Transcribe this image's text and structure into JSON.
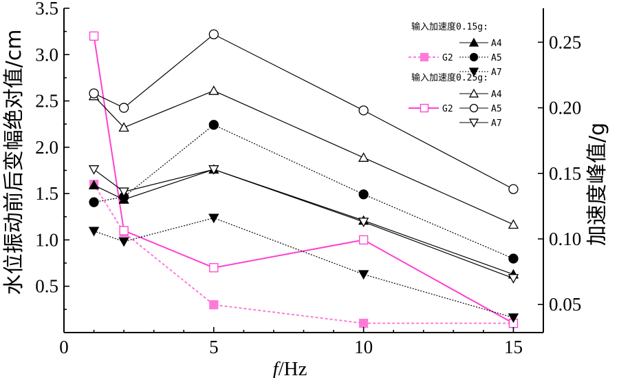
{
  "chart_data": {
    "type": "line",
    "xlabel_italic": "f",
    "xlabel_rest": "/Hz",
    "ylabel": "水位振动前后变幅绝对值/cm",
    "ylabel_right": "加速度峰值/g",
    "x_ticks": [
      "0",
      "5",
      "10",
      "15"
    ],
    "x_tick_values": [
      0,
      5,
      10,
      15
    ],
    "y_ticks": [
      "0.5",
      "1.0",
      "1.5",
      "2.0",
      "2.5",
      "3.0",
      "3.5"
    ],
    "y_tick_values": [
      0.5,
      1.0,
      1.5,
      2.0,
      2.5,
      3.0,
      3.5
    ],
    "y2_ticks": [
      "0.05",
      "0.10",
      "0.15",
      "0.20",
      "0.25"
    ],
    "y2_tick_values": [
      0.05,
      0.1,
      0.15,
      0.2,
      0.25
    ],
    "xlim": [
      0,
      16
    ],
    "ylim": [
      0,
      3.5
    ],
    "y2lim": [
      0.0286,
      0.2759
    ],
    "legend_groups": [
      {
        "title": "输入加速度0.15g:",
        "g2_label": "G2",
        "labels": [
          "A4",
          "A5",
          "A7"
        ]
      },
      {
        "title": "输入加速度0.25g:",
        "g2_label": "G2",
        "labels": [
          "A4",
          "A5",
          "A7"
        ]
      }
    ],
    "series": [
      {
        "name": "G2",
        "axis": "left",
        "group": 0,
        "marker": "square",
        "filled": true,
        "color": "#ff7ad8",
        "dash": "4,3",
        "width": 2,
        "x": [
          1,
          2,
          5,
          10,
          15
        ],
        "y": [
          1.6,
          1.08,
          0.3,
          0.1,
          0.1
        ]
      },
      {
        "name": "G2",
        "axis": "left",
        "group": 1,
        "marker": "square",
        "filled": false,
        "color": "#ff3fd0",
        "dash": "",
        "width": 2,
        "x": [
          1,
          2,
          5,
          10,
          15
        ],
        "y": [
          3.2,
          1.1,
          0.7,
          1.0,
          0.1
        ]
      },
      {
        "name": "A4",
        "axis": "right",
        "group": 0,
        "marker": "triangle-up",
        "filled": true,
        "color": "#000",
        "dash": "",
        "width": 1.2,
        "x": [
          1,
          2,
          5,
          10,
          15
        ],
        "y": [
          0.141,
          0.13,
          0.153,
          0.114,
          0.073
        ]
      },
      {
        "name": "A5",
        "axis": "right",
        "group": 0,
        "marker": "circle",
        "filled": true,
        "color": "#000",
        "dash": "2,2",
        "width": 1.2,
        "x": [
          1,
          2,
          5,
          10,
          15
        ],
        "y": [
          0.128,
          0.132,
          0.187,
          0.134,
          0.085
        ]
      },
      {
        "name": "A7",
        "axis": "right",
        "group": 0,
        "marker": "triangle-down",
        "filled": true,
        "color": "#000",
        "dash": "2,2",
        "width": 1.2,
        "x": [
          1,
          2,
          5,
          10,
          15
        ],
        "y": [
          0.106,
          0.098,
          0.116,
          0.073,
          0.04
        ]
      },
      {
        "name": "A4",
        "axis": "right",
        "group": 1,
        "marker": "triangle-up",
        "filled": false,
        "color": "#000",
        "dash": "",
        "width": 1.2,
        "x": [
          1,
          2,
          5,
          10,
          15
        ],
        "y": [
          0.209,
          0.185,
          0.213,
          0.162,
          0.111
        ]
      },
      {
        "name": "A5",
        "axis": "right",
        "group": 1,
        "marker": "circle",
        "filled": false,
        "color": "#000",
        "dash": "",
        "width": 1.2,
        "x": [
          1,
          2,
          5,
          10,
          15
        ],
        "y": [
          0.211,
          0.2,
          0.256,
          0.198,
          0.138
        ]
      },
      {
        "name": "A7",
        "axis": "right",
        "group": 1,
        "marker": "triangle-down",
        "filled": false,
        "color": "#000",
        "dash": "",
        "width": 1.2,
        "x": [
          1,
          2,
          5,
          10,
          15
        ],
        "y": [
          0.153,
          0.136,
          0.153,
          0.113,
          0.07
        ]
      }
    ]
  }
}
